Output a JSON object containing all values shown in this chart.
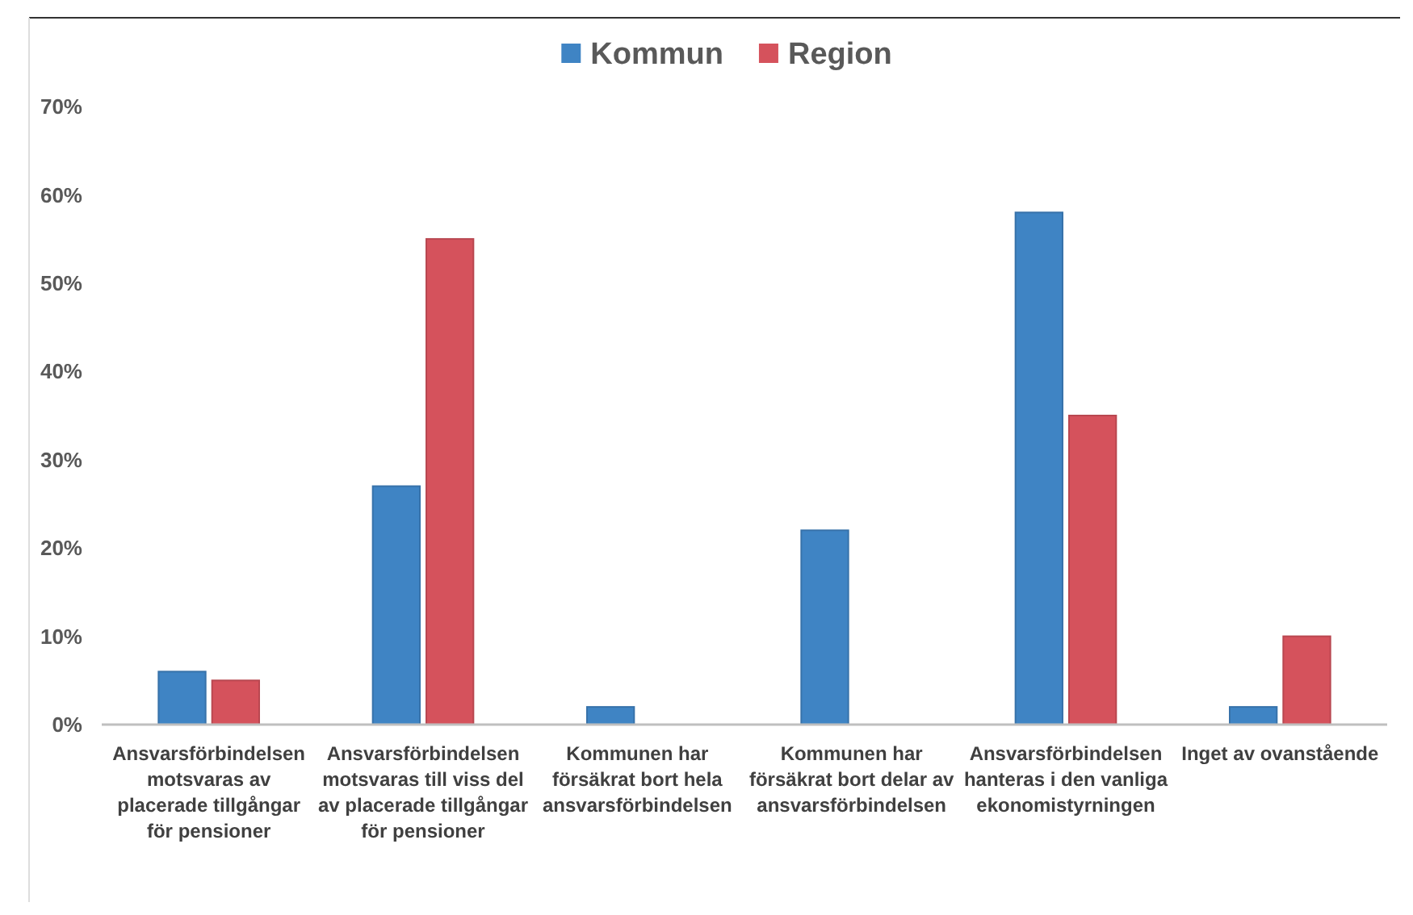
{
  "chart_data": {
    "type": "bar",
    "categories": [
      "Ansvarsförbindelsen motsvaras av placerade tillgångar för pensioner",
      "Ansvarsförbindelsen motsvaras till viss del av placerade tillgångar för pensioner",
      "Kommunen har försäkrat bort hela ansvarsförbindelsen",
      "Kommunen har försäkrat bort delar av ansvarsförbindelsen",
      "Ansvarsförbindelsen hanteras i den vanliga ekonomistyrningen",
      "Inget av ovanstående"
    ],
    "series": [
      {
        "name": "Kommun",
        "color": "#3f84c4",
        "values": [
          6,
          27,
          2,
          22,
          58,
          2
        ]
      },
      {
        "name": "Region",
        "color": "#d5525c",
        "values": [
          5,
          55,
          0,
          0,
          35,
          10
        ]
      }
    ],
    "ylim": [
      0,
      70
    ],
    "yticks": [
      {
        "value": 0,
        "label": "0%"
      },
      {
        "value": 10,
        "label": "10%"
      },
      {
        "value": 20,
        "label": "20%"
      },
      {
        "value": 30,
        "label": "30%"
      },
      {
        "value": 40,
        "label": "40%"
      },
      {
        "value": 50,
        "label": "50%"
      },
      {
        "value": 60,
        "label": "60%"
      },
      {
        "value": 70,
        "label": "70%"
      }
    ],
    "grid": false,
    "legend": "top"
  }
}
